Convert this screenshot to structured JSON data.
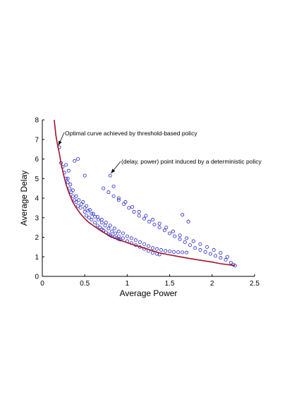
{
  "chart_data": {
    "type": "scatter",
    "xlabel": "Average Power",
    "ylabel": "Average Delay",
    "xlim": [
      0,
      2.5
    ],
    "ylim": [
      0,
      8
    ],
    "xticks": [
      0,
      0.5,
      1,
      1.5,
      2,
      2.5
    ],
    "xtick_labels": [
      "0",
      "0.5",
      "1",
      "1.5",
      "2",
      "2.5"
    ],
    "yticks": [
      0,
      1,
      2,
      3,
      4,
      5,
      6,
      7,
      8
    ],
    "ytick_labels": [
      "0",
      "1",
      "2",
      "3",
      "4",
      "5",
      "6",
      "7",
      "8"
    ],
    "grid": false,
    "legend": "none",
    "colors": {
      "curve": "#a0142c",
      "points": "#2222cc",
      "axes": "#000000"
    },
    "annotations": [
      {
        "text": "Optimal curve achieved by threshold-based policy",
        "x": 0.2,
        "y": 6.9
      },
      {
        "text": "(delay, power) point induced by a deterministic policy",
        "x": 0.8,
        "y": 5.2
      }
    ],
    "series": [
      {
        "type": "line",
        "x": [
          0.14,
          0.16,
          0.18,
          0.2,
          0.22,
          0.25,
          0.28,
          0.32,
          0.36,
          0.4,
          0.45,
          0.5,
          0.55,
          0.6,
          0.7,
          0.8,
          0.92,
          1.0,
          1.1,
          1.2,
          1.38,
          1.5,
          1.65,
          1.8,
          2.0,
          2.1,
          2.27
        ],
        "y": [
          8.0,
          7.2,
          6.7,
          6.3,
          5.8,
          5.2,
          4.7,
          4.2,
          3.8,
          3.5,
          3.2,
          2.95,
          2.75,
          2.6,
          2.3,
          2.05,
          1.85,
          1.72,
          1.58,
          1.45,
          1.2,
          1.1,
          0.98,
          0.87,
          0.73,
          0.65,
          0.55
        ]
      },
      {
        "type": "scatter",
        "x": [
          0.2,
          0.22,
          0.24,
          0.26,
          0.28,
          0.3,
          0.32,
          0.34,
          0.36,
          0.38,
          0.4,
          0.42,
          0.45,
          0.5,
          0.52,
          0.55,
          0.58,
          0.62,
          0.65,
          0.68,
          0.7,
          0.72,
          0.75,
          0.78,
          0.8,
          0.82,
          0.85,
          0.88,
          0.9,
          0.92,
          0.3,
          0.33,
          0.36,
          0.4,
          0.43,
          0.46,
          0.5,
          0.54,
          0.58,
          0.62,
          0.66,
          0.7,
          0.74,
          0.78,
          0.82,
          0.86,
          0.9,
          0.95,
          1.0,
          1.05,
          1.1,
          1.15,
          1.2,
          1.25,
          1.3,
          1.35,
          1.38,
          0.48,
          0.52,
          0.56,
          0.6,
          0.65,
          0.7,
          0.75,
          0.8,
          0.85,
          0.9,
          0.95,
          1.0,
          1.05,
          1.1,
          1.15,
          1.2,
          1.25,
          1.3,
          1.35,
          1.4,
          1.45,
          1.5,
          1.55,
          1.6,
          1.65,
          1.7,
          0.72,
          0.78,
          0.84,
          0.9,
          0.96,
          1.02,
          1.08,
          1.14,
          1.2,
          1.26,
          1.32,
          1.38,
          1.44,
          1.5,
          1.56,
          1.62,
          1.68,
          1.74,
          1.8,
          1.86,
          1.92,
          1.98,
          2.04,
          2.1,
          2.16,
          2.22,
          2.27,
          0.9,
          0.98,
          1.06,
          1.14,
          1.22,
          1.3,
          1.38,
          1.46,
          1.54,
          1.62,
          1.7,
          1.78,
          1.86,
          1.94,
          2.02,
          2.1,
          2.18,
          2.25,
          0.38,
          0.42,
          0.5,
          0.8,
          0.84,
          1.65,
          1.72,
          0.28,
          0.31
        ],
        "y": [
          6.6,
          5.8,
          5.6,
          5.3,
          5.0,
          4.8,
          4.5,
          4.3,
          4.1,
          3.9,
          3.8,
          3.6,
          3.5,
          3.3,
          3.1,
          3.0,
          2.9,
          2.75,
          2.6,
          2.5,
          2.4,
          2.35,
          2.25,
          2.15,
          2.1,
          2.05,
          2.0,
          1.95,
          1.9,
          1.88,
          5.0,
          4.7,
          4.4,
          4.1,
          3.9,
          3.7,
          3.5,
          3.35,
          3.2,
          3.05,
          2.9,
          2.75,
          2.6,
          2.45,
          2.3,
          2.2,
          2.05,
          1.95,
          1.8,
          1.7,
          1.6,
          1.5,
          1.4,
          1.3,
          1.2,
          1.15,
          1.12,
          3.8,
          3.6,
          3.4,
          3.2,
          3.05,
          2.9,
          2.75,
          2.6,
          2.45,
          2.3,
          2.2,
          2.05,
          1.95,
          1.85,
          1.75,
          1.65,
          1.55,
          1.45,
          1.4,
          1.35,
          1.3,
          1.28,
          1.25,
          1.24,
          1.23,
          1.22,
          4.5,
          4.3,
          4.1,
          3.9,
          3.7,
          3.5,
          3.3,
          3.1,
          2.95,
          2.8,
          2.65,
          2.5,
          2.35,
          2.2,
          2.05,
          1.9,
          1.75,
          1.6,
          1.45,
          1.35,
          1.25,
          1.15,
          1.05,
          0.95,
          0.85,
          0.7,
          0.55,
          4.0,
          3.8,
          3.55,
          3.3,
          3.1,
          2.9,
          2.7,
          2.5,
          2.3,
          2.1,
          1.95,
          1.8,
          1.65,
          1.5,
          1.35,
          1.2,
          1.0,
          0.6,
          5.9,
          6.0,
          5.15,
          5.15,
          4.6,
          3.15,
          2.8,
          5.7,
          5.4
        ]
      }
    ]
  }
}
